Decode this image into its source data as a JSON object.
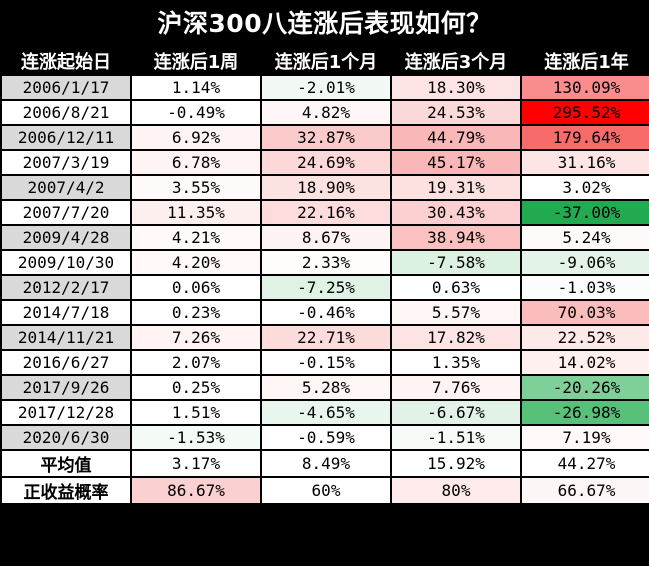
{
  "title": "沪深300八连涨后表现如何？",
  "headers": [
    "连涨起始日",
    "连涨后1周",
    "连涨后1个月",
    "连涨后3个月",
    "连涨后1年"
  ],
  "rows": [
    {
      "date": "2006/1/17",
      "shade": "#d9d9d9",
      "cells": [
        {
          "v": "1.14%",
          "bg": "#ffffff"
        },
        {
          "v": "-2.01%",
          "bg": "#f2f9f4"
        },
        {
          "v": "18.30%",
          "bg": "#fde3e3"
        },
        {
          "v": "130.09%",
          "bg": "#f98c8c"
        }
      ]
    },
    {
      "date": "2006/8/21",
      "shade": "#ffffff",
      "cells": [
        {
          "v": "-0.49%",
          "bg": "#ffffff"
        },
        {
          "v": "4.82%",
          "bg": "#fff7f7"
        },
        {
          "v": "24.53%",
          "bg": "#fcd9d9"
        },
        {
          "v": "295.52%",
          "bg": "#ff0000"
        }
      ]
    },
    {
      "date": "2006/12/11",
      "shade": "#d9d9d9",
      "cells": [
        {
          "v": "6.92%",
          "bg": "#fff4f4"
        },
        {
          "v": "32.87%",
          "bg": "#fbcaca"
        },
        {
          "v": "44.79%",
          "bg": "#fab7b7"
        },
        {
          "v": "179.64%",
          "bg": "#f86b6b"
        }
      ]
    },
    {
      "date": "2007/3/19",
      "shade": "#ffffff",
      "cells": [
        {
          "v": "6.78%",
          "bg": "#fff4f4"
        },
        {
          "v": "24.69%",
          "bg": "#fcd8d8"
        },
        {
          "v": "45.17%",
          "bg": "#fab7b7"
        },
        {
          "v": "31.16%",
          "bg": "#fde5e5"
        }
      ]
    },
    {
      "date": "2007/4/2",
      "shade": "#d9d9d9",
      "cells": [
        {
          "v": "3.55%",
          "bg": "#fffafa"
        },
        {
          "v": "18.90%",
          "bg": "#fde2e2"
        },
        {
          "v": "19.31%",
          "bg": "#fde1e1"
        },
        {
          "v": "3.02%",
          "bg": "#ffffff"
        }
      ]
    },
    {
      "date": "2007/7/20",
      "shade": "#ffffff",
      "cells": [
        {
          "v": "11.35%",
          "bg": "#feefef"
        },
        {
          "v": "22.16%",
          "bg": "#fcdcdc"
        },
        {
          "v": "30.43%",
          "bg": "#fcd0d0"
        },
        {
          "v": "-37.00%",
          "bg": "#21aa4f"
        }
      ]
    },
    {
      "date": "2009/4/28",
      "shade": "#d9d9d9",
      "cells": [
        {
          "v": "4.21%",
          "bg": "#fff9f9"
        },
        {
          "v": "8.67%",
          "bg": "#fef3f3"
        },
        {
          "v": "38.94%",
          "bg": "#fbc0c0"
        },
        {
          "v": "5.24%",
          "bg": "#fffafa"
        }
      ]
    },
    {
      "date": "2009/10/30",
      "shade": "#ffffff",
      "cells": [
        {
          "v": "4.20%",
          "bg": "#fff9f9"
        },
        {
          "v": "2.33%",
          "bg": "#fffcfc"
        },
        {
          "v": "-7.58%",
          "bg": "#ddf1e3"
        },
        {
          "v": "-9.06%",
          "bg": "#e3f3e8"
        }
      ]
    },
    {
      "date": "2012/2/17",
      "shade": "#d9d9d9",
      "cells": [
        {
          "v": "0.06%",
          "bg": "#ffffff"
        },
        {
          "v": "-7.25%",
          "bg": "#dff2e5"
        },
        {
          "v": "0.63%",
          "bg": "#ffffff"
        },
        {
          "v": "-1.03%",
          "bg": "#fafdfb"
        }
      ]
    },
    {
      "date": "2014/7/18",
      "shade": "#ffffff",
      "cells": [
        {
          "v": "0.23%",
          "bg": "#ffffff"
        },
        {
          "v": "-0.46%",
          "bg": "#ffffff"
        },
        {
          "v": "5.57%",
          "bg": "#fff6f6"
        },
        {
          "v": "70.03%",
          "bg": "#fbbcbc"
        }
      ]
    },
    {
      "date": "2014/11/21",
      "shade": "#d9d9d9",
      "cells": [
        {
          "v": "7.26%",
          "bg": "#fff3f3"
        },
        {
          "v": "22.71%",
          "bg": "#fcdbdb"
        },
        {
          "v": "17.82%",
          "bg": "#fde4e4"
        },
        {
          "v": "22.52%",
          "bg": "#fee9e9"
        }
      ]
    },
    {
      "date": "2016/6/27",
      "shade": "#ffffff",
      "cells": [
        {
          "v": "2.07%",
          "bg": "#ffffff"
        },
        {
          "v": "-0.15%",
          "bg": "#ffffff"
        },
        {
          "v": "1.35%",
          "bg": "#ffffff"
        },
        {
          "v": "14.02%",
          "bg": "#fff0f0"
        }
      ]
    },
    {
      "date": "2017/9/26",
      "shade": "#d9d9d9",
      "cells": [
        {
          "v": "0.25%",
          "bg": "#ffffff"
        },
        {
          "v": "5.28%",
          "bg": "#fff6f6"
        },
        {
          "v": "7.76%",
          "bg": "#fff3f3"
        },
        {
          "v": "-20.26%",
          "bg": "#7fcf99"
        }
      ]
    },
    {
      "date": "2017/12/28",
      "shade": "#ffffff",
      "cells": [
        {
          "v": "1.51%",
          "bg": "#ffffff"
        },
        {
          "v": "-4.65%",
          "bg": "#e8f6ed"
        },
        {
          "v": "-6.67%",
          "bg": "#e1f3e7"
        },
        {
          "v": "-26.98%",
          "bg": "#59c07a"
        }
      ]
    },
    {
      "date": "2020/6/30",
      "shade": "#d9d9d9",
      "cells": [
        {
          "v": "-1.53%",
          "bg": "#f4fbf6"
        },
        {
          "v": "-0.59%",
          "bg": "#ffffff"
        },
        {
          "v": "-1.51%",
          "bg": "#f6fbf8"
        },
        {
          "v": "7.19%",
          "bg": "#fff9f9"
        }
      ]
    }
  ],
  "average": {
    "label": "平均值",
    "cells": [
      {
        "v": "3.17%",
        "bg": "#ffffff"
      },
      {
        "v": "8.49%",
        "bg": "#ffffff"
      },
      {
        "v": "15.92%",
        "bg": "#ffffff"
      },
      {
        "v": "44.27%",
        "bg": "#ffffff"
      }
    ]
  },
  "positive_rate": {
    "label": "正收益概率",
    "cells": [
      {
        "v": "86.67%",
        "bg": "#fbd0d0"
      },
      {
        "v": "60%",
        "bg": "#ffffff"
      },
      {
        "v": "80%",
        "bg": "#fdeaea"
      },
      {
        "v": "66.67%",
        "bg": "#fdf6f6"
      }
    ]
  }
}
